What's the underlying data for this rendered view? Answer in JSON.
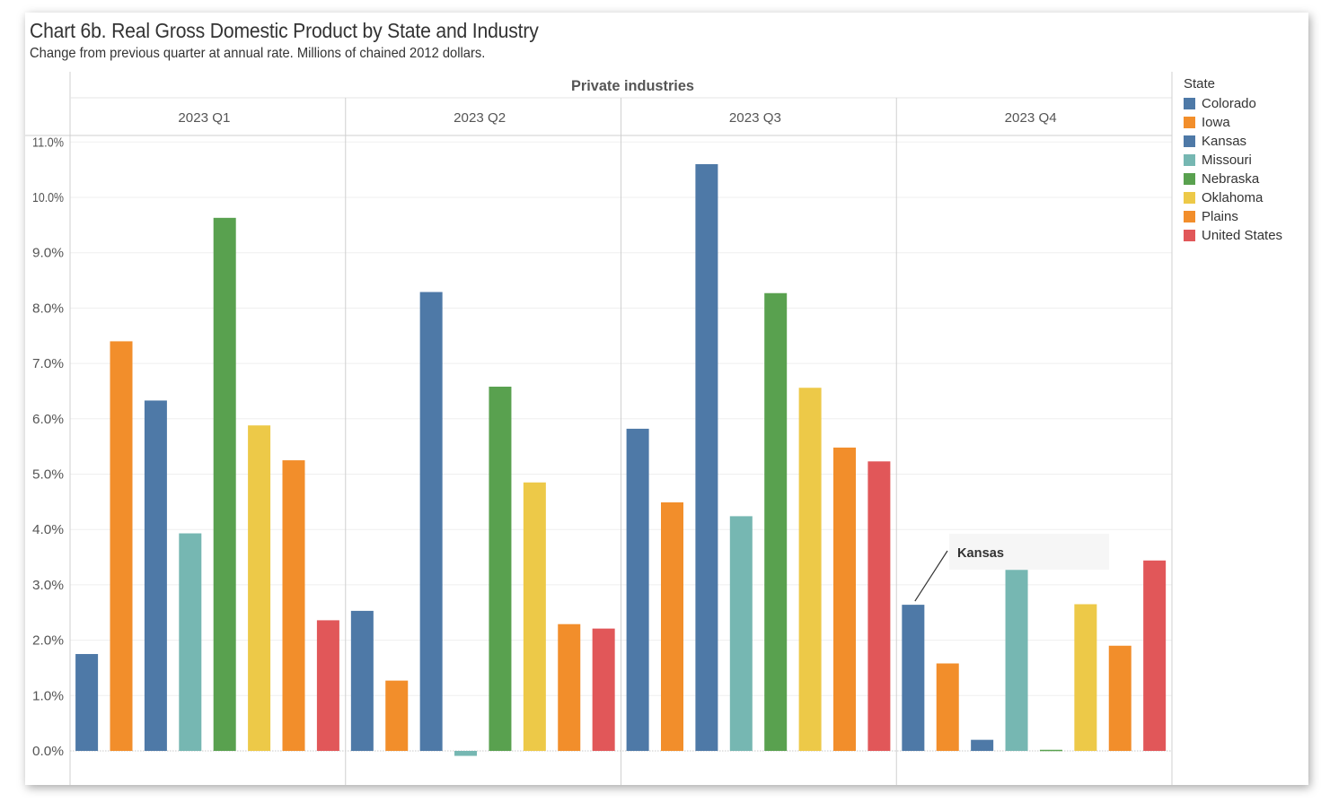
{
  "title": "Chart 6b. Real Gross Domestic Product by State and Industry",
  "subtitle": "Change from previous quarter at annual rate. Millions of chained 2012 dollars.",
  "colors": {
    "Colorado": "#4e79a7",
    "Iowa": "#f28e2b",
    "Kansas": "#4e79a7",
    "Missouri": "#76b7b2",
    "Nebraska": "#59a14f",
    "Oklahoma": "#edc948",
    "Plains": "#f28e2b",
    "United States": "#e15759"
  },
  "legend": {
    "title": "State",
    "items": [
      "Colorado",
      "Iowa",
      "Kansas",
      "Missouri",
      "Nebraska",
      "Oklahoma",
      "Plains",
      "United States"
    ]
  },
  "annotation": {
    "text": "Kansas",
    "panel": "2023 Q4",
    "series": "Colorado"
  },
  "chart_data": {
    "type": "bar",
    "header": "Private industries",
    "panels": [
      "2023 Q1",
      "2023 Q2",
      "2023 Q3",
      "2023 Q4"
    ],
    "categories": [
      "Colorado",
      "Iowa",
      "Kansas",
      "Missouri",
      "Nebraska",
      "Oklahoma",
      "Plains",
      "United States"
    ],
    "ylim": [
      0,
      11
    ],
    "yticks": [
      "0.0%",
      "1.0%",
      "2.0%",
      "3.0%",
      "4.0%",
      "5.0%",
      "6.0%",
      "7.0%",
      "8.0%",
      "9.0%",
      "10.0%",
      "11.0%"
    ],
    "series": [
      {
        "name": "2023 Q1",
        "values": [
          1.75,
          7.4,
          6.33,
          3.93,
          9.63,
          5.88,
          5.25,
          2.36
        ]
      },
      {
        "name": "2023 Q2",
        "values": [
          2.53,
          1.27,
          8.29,
          -0.09,
          6.58,
          4.85,
          2.29,
          2.21
        ]
      },
      {
        "name": "2023 Q3",
        "values": [
          5.82,
          4.49,
          10.6,
          4.24,
          8.27,
          6.56,
          5.48,
          5.23
        ]
      },
      {
        "name": "2023 Q4",
        "values": [
          2.64,
          1.58,
          0.2,
          3.27,
          0.02,
          2.65,
          1.9,
          3.44
        ]
      }
    ],
    "grid": true,
    "legend_position": "right"
  }
}
